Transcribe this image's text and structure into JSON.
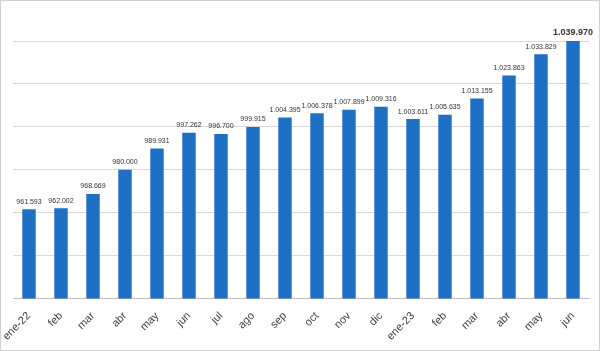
{
  "chart_data": {
    "type": "bar",
    "categories": [
      "ene-22",
      "feb",
      "mar",
      "abr",
      "may",
      "jun",
      "jul",
      "ago",
      "sep",
      "oct",
      "nov",
      "dic",
      "ene-23",
      "feb",
      "mar",
      "abr",
      "may",
      "jun"
    ],
    "values": [
      961593,
      962002,
      968669,
      980000,
      989931,
      997262,
      996700,
      999915,
      1004395,
      1006378,
      1007899,
      1009316,
      1003611,
      1005635,
      1013155,
      1023863,
      1033829,
      1039970
    ],
    "value_labels": [
      "961.593",
      "962.002",
      "968.669",
      "980.000",
      "989.931",
      "997.262",
      "996.700",
      "999.915",
      "1.004.395",
      "1.006.378",
      "1.007.899",
      "1.009.316",
      "1.003.611",
      "1.005.635",
      "1.013.155",
      "1.023.863",
      "1.033.829",
      "1.039.970"
    ],
    "color": "#1f6fc5",
    "ylim": [
      920000,
      1040000
    ],
    "yticks": [
      920000,
      940000,
      960000,
      980000,
      1000000,
      1020000,
      1040000
    ],
    "grid": true,
    "data_labels": true,
    "tick_labels": "x"
  }
}
